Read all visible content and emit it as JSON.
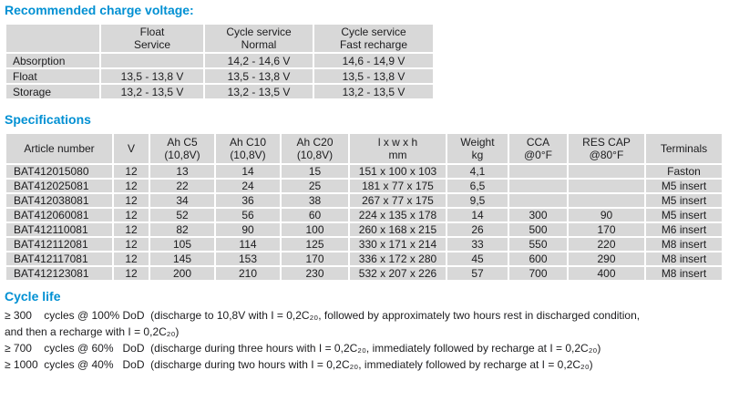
{
  "colors": {
    "accent_blue": "#0090d3",
    "cell_gray": "#d8d8d8",
    "separator": "#ffffff",
    "text": "#1c1c1e"
  },
  "charge_voltage": {
    "title": "Recommended charge voltage:",
    "col_headers": [
      "",
      "Float\nService",
      "Cycle service\nNormal",
      "Cycle service\nFast recharge"
    ],
    "rows": [
      [
        "Absorption",
        "",
        "14,2 - 14,6 V",
        "14,6 - 14,9 V"
      ],
      [
        "Float",
        "13,5 - 13,8 V",
        "13,5 - 13,8 V",
        "13,5 - 13,8 V"
      ],
      [
        "Storage",
        "13,2 - 13,5 V",
        "13,2 - 13,5 V",
        "13,2 - 13,5 V"
      ]
    ]
  },
  "specifications": {
    "title": "Specifications",
    "col_headers": [
      "Article number",
      "V",
      "Ah C5\n(10,8V)",
      "Ah C10\n(10,8V)",
      "Ah C20\n(10,8V)",
      "l x w x h\nmm",
      "Weight\nkg",
      "CCA\n@0°F",
      "RES CAP\n@80°F",
      "Terminals"
    ],
    "rows": [
      [
        "BAT412015080",
        "12",
        "13",
        "14",
        "15",
        "151 x 100 x 103",
        "4,1",
        "",
        "",
        "Faston"
      ],
      [
        "BAT412025081",
        "12",
        "22",
        "24",
        "25",
        "181 x 77 x 175",
        "6,5",
        "",
        "",
        "M5 insert"
      ],
      [
        "BAT412038081",
        "12",
        "34",
        "36",
        "38",
        "267 x 77 x 175",
        "9,5",
        "",
        "",
        "M5 insert"
      ],
      [
        "BAT412060081",
        "12",
        "52",
        "56",
        "60",
        "224 x 135 x 178",
        "14",
        "300",
        "90",
        "M5 insert"
      ],
      [
        "BAT412110081",
        "12",
        "82",
        "90",
        "100",
        "260 x 168 x 215",
        "26",
        "500",
        "170",
        "M6 insert"
      ],
      [
        "BAT412112081",
        "12",
        "105",
        "114",
        "125",
        "330 x 171 x 214",
        "33",
        "550",
        "220",
        "M8 insert"
      ],
      [
        "BAT412117081",
        "12",
        "145",
        "153",
        "170",
        "336 x 172 x 280",
        "45",
        "600",
        "290",
        "M8 insert"
      ],
      [
        "BAT412123081",
        "12",
        "200",
        "210",
        "230",
        "532 x 207 x 226",
        "57",
        "700",
        "400",
        "M8 insert"
      ]
    ]
  },
  "cycle_life": {
    "title": "Cycle life",
    "lines": [
      "≥ 300    cycles @ 100% DoD  (discharge to 10,8V with I = 0,2C₂₀, followed by approximately two hours rest in discharged condition,",
      "and then a recharge with I = 0,2C₂₀)",
      "≥ 700    cycles @ 60%   DoD  (discharge during three hours with I = 0,2C₂₀, immediately followed by recharge at I = 0,2C₂₀)",
      "≥ 1000  cycles @ 40%   DoD  (discharge during two hours with I = 0,2C₂₀, immediately followed by recharge at I = 0,2C₂₀)"
    ]
  }
}
